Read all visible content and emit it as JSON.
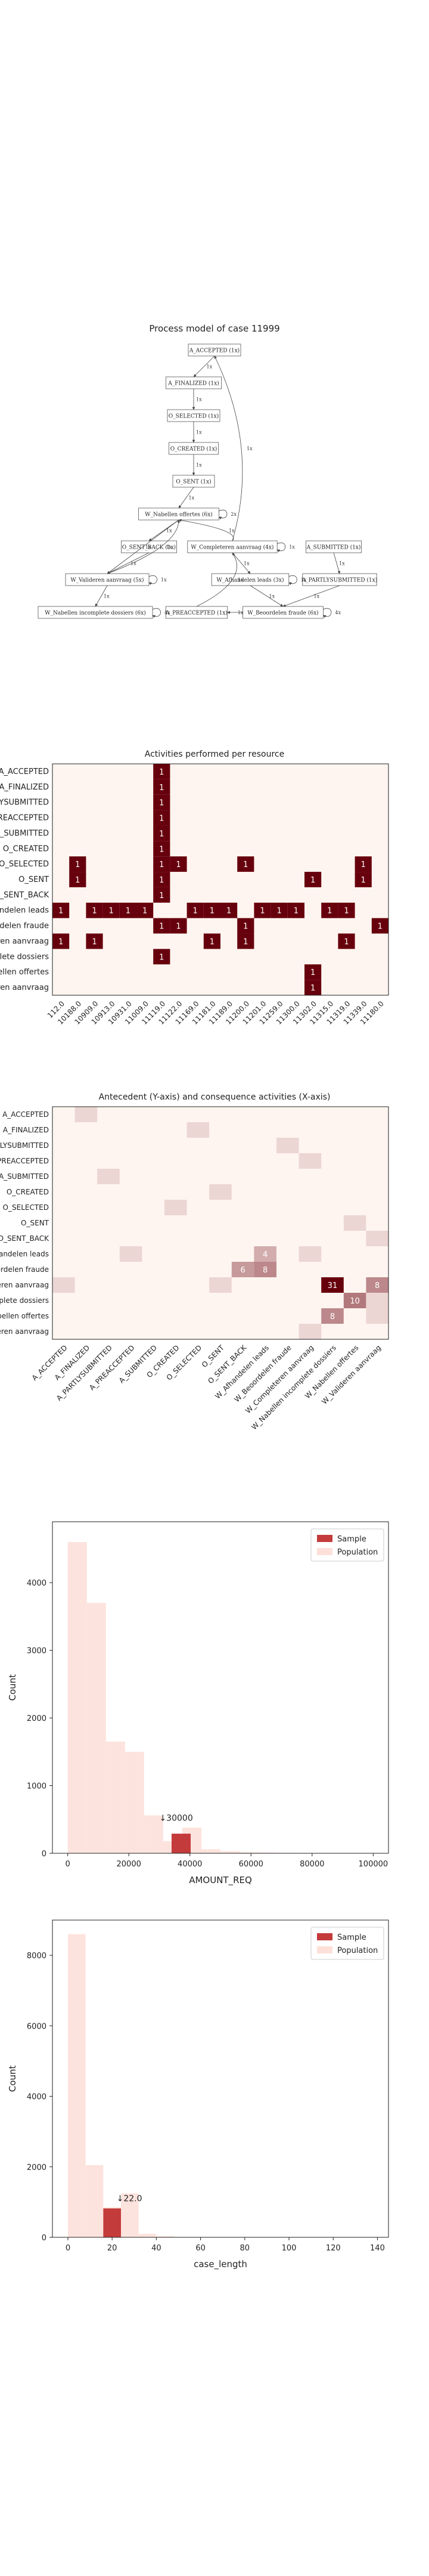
{
  "colors": {
    "dark": "#67000d",
    "light": "#fff5f0",
    "sample": "#c43b3b",
    "population": "#fde0d9",
    "edge": "#444444"
  },
  "process_model": {
    "title": "Process model of case 11999",
    "nodes": [
      {
        "id": "n1",
        "label": "A_ACCEPTED (1x)"
      },
      {
        "id": "n2",
        "label": "A_FINALIZED (1x)"
      },
      {
        "id": "n3",
        "label": "O_SELECTED (1x)"
      },
      {
        "id": "n4",
        "label": "O_CREATED (1x)"
      },
      {
        "id": "n5",
        "label": "O_SENT (1x)"
      },
      {
        "id": "n6",
        "label": "W_Nabellen offertes (6x)"
      },
      {
        "id": "n7",
        "label": "O_SENT_BACK (1x)"
      },
      {
        "id": "n8",
        "label": "W_Completeren aanvraag (4x)"
      },
      {
        "id": "n9",
        "label": "A_SUBMITTED (1x)"
      },
      {
        "id": "n10",
        "label": "W_Valideren aanvraag (5x)"
      },
      {
        "id": "n11",
        "label": "W_Afhandelen leads (3x)"
      },
      {
        "id": "n12",
        "label": "A_PARTLYSUBMITTED (1x)"
      },
      {
        "id": "n13",
        "label": "W_Nabellen incomplete dossiers (6x)"
      },
      {
        "id": "n14",
        "label": "A_PREACCEPTED (1x)"
      },
      {
        "id": "n15",
        "label": "W_Beoordelen fraude (6x)"
      }
    ],
    "edges": [
      {
        "from": "n1",
        "to": "n2",
        "label": "1x"
      },
      {
        "from": "n2",
        "to": "n3",
        "label": "1x"
      },
      {
        "from": "n3",
        "to": "n4",
        "label": "1x"
      },
      {
        "from": "n4",
        "to": "n5",
        "label": "1x"
      },
      {
        "from": "n5",
        "to": "n6",
        "label": "1x"
      },
      {
        "from": "n6",
        "to": "n6",
        "label": "2x"
      },
      {
        "from": "n6",
        "to": "n7",
        "label": "1x"
      },
      {
        "from": "n6",
        "to": "n10",
        "label": "1x"
      },
      {
        "from": "n7",
        "to": "n10",
        "label": "1x"
      },
      {
        "from": "n8",
        "to": "n6",
        "label": "1x"
      },
      {
        "from": "n8",
        "to": "n8",
        "label": "1x"
      },
      {
        "from": "n8",
        "to": "n1",
        "label": "1x"
      },
      {
        "from": "n8",
        "to": "n11",
        "label": "1x"
      },
      {
        "from": "n9",
        "to": "n12",
        "label": "1x"
      },
      {
        "from": "n10",
        "to": "n10",
        "label": "1x"
      },
      {
        "from": "n10",
        "to": "n13",
        "label": "1x"
      },
      {
        "from": "n10",
        "to": "n6",
        "label": "1x"
      },
      {
        "from": "n13",
        "to": "n13",
        "label": "4x"
      },
      {
        "from": "n11",
        "to": "n11",
        "label": "1x"
      },
      {
        "from": "n11",
        "to": "n15",
        "label": "1x"
      },
      {
        "from": "n12",
        "to": "n15",
        "label": "1x"
      },
      {
        "from": "n15",
        "to": "n15",
        "label": "4x"
      },
      {
        "from": "n15",
        "to": "n14",
        "label": "1x"
      },
      {
        "from": "n14",
        "to": "n8",
        "label": "1x"
      }
    ]
  },
  "chart_data": [
    {
      "type": "heatmap",
      "title": "Activities performed per resource",
      "rows": [
        "A_ACCEPTED",
        "A_FINALIZED",
        "A_PARTLYSUBMITTED",
        "A_PREACCEPTED",
        "A_SUBMITTED",
        "O_CREATED",
        "O_SELECTED",
        "O_SENT",
        "O_SENT_BACK",
        "W_Afhandelen leads",
        "W_Beoordelen fraude",
        "W_Completeren aanvraag",
        "W_Nabellen incomplete dossiers",
        "W_Nabellen offertes",
        "W_Valideren aanvraag"
      ],
      "cols": [
        "112.0",
        "10188.0",
        "10909.0",
        "10913.0",
        "10931.0",
        "11009.0",
        "11119.0",
        "11122.0",
        "11169.0",
        "11181.0",
        "11189.0",
        "11200.0",
        "11201.0",
        "11259.0",
        "11300.0",
        "11302.0",
        "11315.0",
        "11319.0",
        "11339.0",
        "11180.0"
      ],
      "cells": [
        {
          "r": 0,
          "c": 6,
          "v": 1
        },
        {
          "r": 1,
          "c": 6,
          "v": 1
        },
        {
          "r": 2,
          "c": 6,
          "v": 1
        },
        {
          "r": 3,
          "c": 6,
          "v": 1
        },
        {
          "r": 4,
          "c": 6,
          "v": 1
        },
        {
          "r": 5,
          "c": 6,
          "v": 1
        },
        {
          "r": 6,
          "c": 1,
          "v": 1
        },
        {
          "r": 6,
          "c": 6,
          "v": 1
        },
        {
          "r": 6,
          "c": 7,
          "v": 1
        },
        {
          "r": 6,
          "c": 11,
          "v": 1
        },
        {
          "r": 6,
          "c": 18,
          "v": 1
        },
        {
          "r": 7,
          "c": 1,
          "v": 1
        },
        {
          "r": 7,
          "c": 6,
          "v": 1
        },
        {
          "r": 7,
          "c": 15,
          "v": 1
        },
        {
          "r": 7,
          "c": 18,
          "v": 1
        },
        {
          "r": 8,
          "c": 6,
          "v": 1
        },
        {
          "r": 9,
          "c": 0,
          "v": 1
        },
        {
          "r": 9,
          "c": 2,
          "v": 1
        },
        {
          "r": 9,
          "c": 3,
          "v": 1
        },
        {
          "r": 9,
          "c": 4,
          "v": 1
        },
        {
          "r": 9,
          "c": 5,
          "v": 1
        },
        {
          "r": 9,
          "c": 8,
          "v": 1
        },
        {
          "r": 9,
          "c": 9,
          "v": 1
        },
        {
          "r": 9,
          "c": 10,
          "v": 1
        },
        {
          "r": 9,
          "c": 12,
          "v": 1
        },
        {
          "r": 9,
          "c": 13,
          "v": 1
        },
        {
          "r": 9,
          "c": 14,
          "v": 1
        },
        {
          "r": 9,
          "c": 16,
          "v": 1
        },
        {
          "r": 9,
          "c": 17,
          "v": 1
        },
        {
          "r": 10,
          "c": 6,
          "v": 1
        },
        {
          "r": 10,
          "c": 7,
          "v": 1
        },
        {
          "r": 10,
          "c": 11,
          "v": 1
        },
        {
          "r": 10,
          "c": 19,
          "v": 1
        },
        {
          "r": 11,
          "c": 0,
          "v": 1
        },
        {
          "r": 11,
          "c": 2,
          "v": 1
        },
        {
          "r": 11,
          "c": 9,
          "v": 1
        },
        {
          "r": 11,
          "c": 11,
          "v": 1
        },
        {
          "r": 11,
          "c": 17,
          "v": 1
        },
        {
          "r": 12,
          "c": 6,
          "v": 1
        },
        {
          "r": 13,
          "c": 15,
          "v": 1
        },
        {
          "r": 14,
          "c": 15,
          "v": 1
        }
      ],
      "vmax": 1
    },
    {
      "type": "heatmap",
      "title": "Antecedent (Y-axis) and consequence activities (X-axis)",
      "rows": [
        "A_ACCEPTED",
        "A_FINALIZED",
        "A_PARTLYSUBMITTED",
        "A_PREACCEPTED",
        "A_SUBMITTED",
        "O_CREATED",
        "O_SELECTED",
        "O_SENT",
        "O_SENT_BACK",
        "W_Afhandelen leads",
        "W_Beoordelen fraude",
        "W_Completeren aanvraag",
        "W_Nabellen incomplete dossiers",
        "W_Nabellen offertes",
        "W_Valideren aanvraag"
      ],
      "cols": [
        "A_ACCEPTED",
        "A_FINALIZED",
        "A_PARTLYSUBMITTED",
        "A_PREACCEPTED",
        "A_SUBMITTED",
        "O_CREATED",
        "O_SELECTED",
        "O_SENT",
        "O_SENT_BACK",
        "W_Afhandelen leads",
        "W_Beoordelen fraude",
        "W_Completeren aanvraag",
        "W_Nabellen incomplete dossiers",
        "W_Nabellen offertes",
        "W_Valideren aanvraag"
      ],
      "cells": [
        {
          "r": 0,
          "c": 1,
          "v": 1
        },
        {
          "r": 1,
          "c": 6,
          "v": 1
        },
        {
          "r": 2,
          "c": 10,
          "v": 1
        },
        {
          "r": 3,
          "c": 11,
          "v": 1
        },
        {
          "r": 4,
          "c": 2,
          "v": 1
        },
        {
          "r": 5,
          "c": 7,
          "v": 1
        },
        {
          "r": 6,
          "c": 5,
          "v": 1
        },
        {
          "r": 7,
          "c": 13,
          "v": 1
        },
        {
          "r": 8,
          "c": 14,
          "v": 1
        },
        {
          "r": 9,
          "c": 3,
          "v": 1
        },
        {
          "r": 9,
          "c": 9,
          "v": 4
        },
        {
          "r": 9,
          "c": 11,
          "v": 1
        },
        {
          "r": 10,
          "c": 8,
          "v": 6
        },
        {
          "r": 10,
          "c": 9,
          "v": 8
        },
        {
          "r": 11,
          "c": 0,
          "v": 1
        },
        {
          "r": 11,
          "c": 7,
          "v": 1
        },
        {
          "r": 11,
          "c": 12,
          "v": 31
        },
        {
          "r": 11,
          "c": 14,
          "v": 8
        },
        {
          "r": 12,
          "c": 13,
          "v": 10
        },
        {
          "r": 12,
          "c": 14,
          "v": 1
        },
        {
          "r": 13,
          "c": 12,
          "v": 8
        },
        {
          "r": 13,
          "c": 14,
          "v": 1
        },
        {
          "r": 14,
          "c": 11,
          "v": 1
        }
      ],
      "show_values_min": 4,
      "vmax": 31
    },
    {
      "type": "bar",
      "title": "",
      "xlabel": "AMOUNT_REQ",
      "ylabel": "Count",
      "xlim": [
        -5000,
        105000
      ],
      "ylim": [
        0,
        4900
      ],
      "xticks": [
        0,
        20000,
        40000,
        60000,
        80000,
        100000
      ],
      "yticks": [
        0,
        1000,
        2000,
        3000,
        4000
      ],
      "bin_width": 6250,
      "series": [
        {
          "name": "Population",
          "bins": [
            {
              "x0": 0,
              "v": 4600
            },
            {
              "x0": 6250,
              "v": 3700
            },
            {
              "x0": 12500,
              "v": 1650
            },
            {
              "x0": 18750,
              "v": 1500
            },
            {
              "x0": 25000,
              "v": 560
            },
            {
              "x0": 31250,
              "v": 180
            },
            {
              "x0": 37500,
              "v": 380
            },
            {
              "x0": 43750,
              "v": 60
            },
            {
              "x0": 50000,
              "v": 30
            },
            {
              "x0": 56250,
              "v": 15
            },
            {
              "x0": 62500,
              "v": 10
            },
            {
              "x0": 68750,
              "v": 6
            },
            {
              "x0": 75000,
              "v": 4
            },
            {
              "x0": 81250,
              "v": 3
            },
            {
              "x0": 87500,
              "v": 2
            },
            {
              "x0": 93750,
              "v": 2
            }
          ]
        },
        {
          "name": "Sample",
          "bins": [
            {
              "x0": 34000,
              "v": 290
            }
          ]
        }
      ],
      "annotation": {
        "text": "↓30000",
        "x": 30000,
        "y": 480
      },
      "legend": "top-right"
    },
    {
      "type": "bar",
      "title": "",
      "xlabel": "case_length",
      "ylabel": "Count",
      "xlim": [
        -7,
        145
      ],
      "ylim": [
        0,
        9000
      ],
      "xticks": [
        0,
        20,
        40,
        60,
        80,
        100,
        120,
        140
      ],
      "yticks": [
        0,
        2000,
        4000,
        6000,
        8000
      ],
      "bin_width": 8,
      "series": [
        {
          "name": "Population",
          "bins": [
            {
              "x0": 0,
              "v": 8600
            },
            {
              "x0": 8,
              "v": 2050
            },
            {
              "x0": 16,
              "v": 850
            },
            {
              "x0": 24,
              "v": 1250
            },
            {
              "x0": 32,
              "v": 100
            },
            {
              "x0": 40,
              "v": 30
            },
            {
              "x0": 48,
              "v": 10
            },
            {
              "x0": 56,
              "v": 5
            }
          ]
        },
        {
          "name": "Sample",
          "bins": [
            {
              "x0": 16,
              "v": 820
            }
          ]
        }
      ],
      "annotation": {
        "text": "↓22.0",
        "x": 22,
        "y": 1020
      },
      "legend": "top-right"
    }
  ]
}
